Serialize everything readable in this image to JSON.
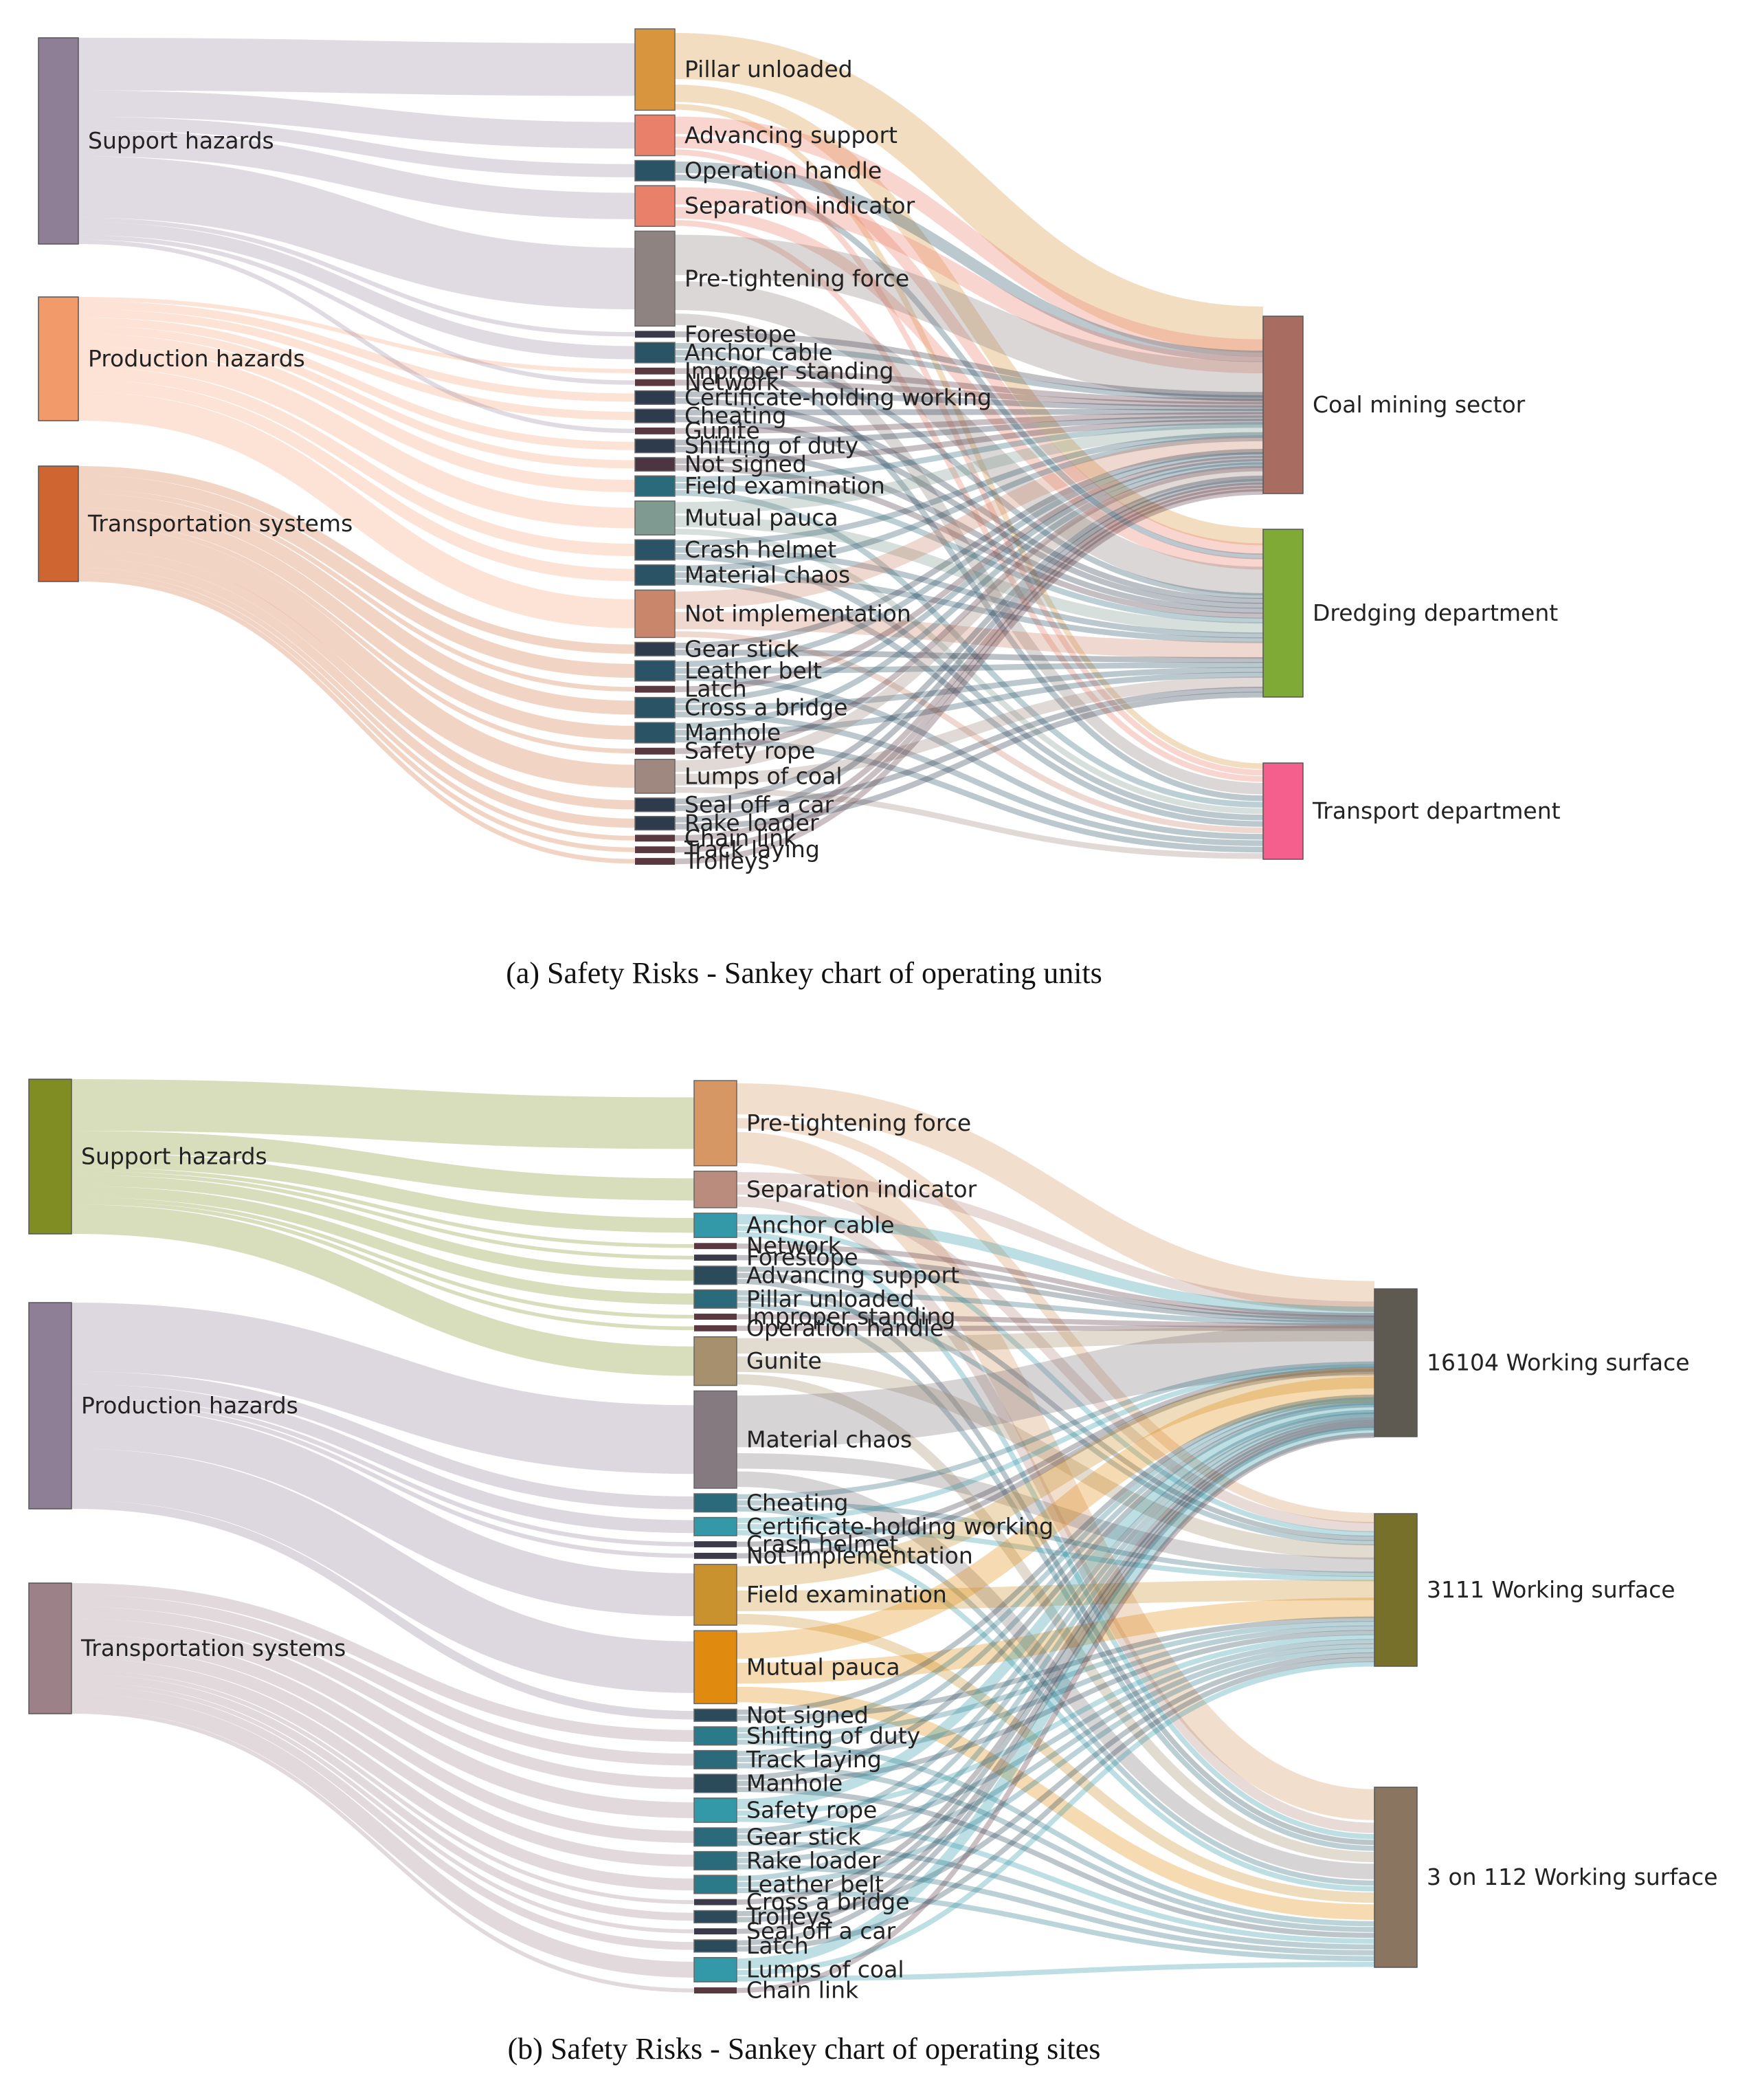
{
  "chart_data": [
    {
      "type": "sankey",
      "caption": "(a) Safety Risks - Sankey chart of operating units",
      "sources": [
        {
          "name": "Support hazards",
          "color": "#8e7f96"
        },
        {
          "name": "Production hazards",
          "color": "#f39a6a"
        },
        {
          "name": "Transportation systems",
          "color": "#cf6530"
        }
      ],
      "middle": [
        {
          "name": "Pillar unloaded",
          "value": 12,
          "source": 0,
          "color": "#d9953d",
          "targets": [
            8,
            3,
            1
          ]
        },
        {
          "name": "Advancing support",
          "value": 6,
          "source": 0,
          "color": "#e8806a",
          "targets": [
            3,
            2,
            1
          ]
        },
        {
          "name": "Operation handle",
          "value": 3,
          "source": 0,
          "color": "#2b5366",
          "targets": [
            2,
            1
          ]
        },
        {
          "name": "Separation indicator",
          "value": 6,
          "source": 0,
          "color": "#e8806a",
          "targets": [
            3,
            2,
            1
          ]
        },
        {
          "name": "Pre-tightening force",
          "value": 14,
          "source": 0,
          "color": "#8e8380",
          "targets": [
            7,
            5,
            2
          ]
        },
        {
          "name": "Forestope",
          "value": 1,
          "source": 0,
          "color": "#3a3a4a",
          "targets": [
            1
          ]
        },
        {
          "name": "Anchor cable",
          "value": 3,
          "source": 0,
          "color": "#2b5366",
          "targets": [
            1,
            1,
            1
          ]
        },
        {
          "name": "Improper standing",
          "value": 1,
          "source": 1,
          "color": "#5a3840",
          "targets": [
            1
          ]
        },
        {
          "name": "Network",
          "value": 1,
          "source": 0,
          "color": "#5a3840",
          "targets": [
            1
          ]
        },
        {
          "name": "Certificate-holding working",
          "value": 2,
          "source": 1,
          "color": "#2d3b4d",
          "targets": [
            1,
            1
          ]
        },
        {
          "name": "Cheating",
          "value": 2,
          "source": 1,
          "color": "#2d3b4d",
          "targets": [
            1,
            1
          ]
        },
        {
          "name": "Gunite",
          "value": 1,
          "source": 0,
          "color": "#5a3840",
          "targets": [
            1
          ]
        },
        {
          "name": "Shifting of duty",
          "value": 2,
          "source": 1,
          "color": "#2d3b4d",
          "targets": [
            1,
            1
          ]
        },
        {
          "name": "Not signed",
          "value": 2,
          "source": 1,
          "color": "#4a3540",
          "targets": [
            1,
            1
          ]
        },
        {
          "name": "Field examination",
          "value": 3,
          "source": 1,
          "color": "#2b6a7a",
          "targets": [
            1,
            1,
            1
          ]
        },
        {
          "name": "Mutual pauca",
          "value": 5,
          "source": 1,
          "color": "#7f9a90",
          "targets": [
            2,
            2,
            1
          ]
        },
        {
          "name": "Crash helmet",
          "value": 3,
          "source": 1,
          "color": "#2b5366",
          "targets": [
            1,
            1,
            1
          ]
        },
        {
          "name": "Material chaos",
          "value": 3,
          "source": 1,
          "color": "#2b5366",
          "targets": [
            1,
            1,
            1
          ]
        },
        {
          "name": "Not implementation",
          "value": 7,
          "source": 1,
          "color": "#c9866a",
          "targets": [
            3,
            3,
            1
          ]
        },
        {
          "name": "Gear stick",
          "value": 2,
          "source": 2,
          "color": "#2d3b4d",
          "targets": [
            1,
            1
          ]
        },
        {
          "name": "Leather belt",
          "value": 3,
          "source": 2,
          "color": "#2b5366",
          "targets": [
            1,
            1,
            1
          ]
        },
        {
          "name": "Latch",
          "value": 1,
          "source": 2,
          "color": "#5a3840",
          "targets": [
            1
          ]
        },
        {
          "name": "Cross a bridge",
          "value": 3,
          "source": 2,
          "color": "#2b5366",
          "targets": [
            1,
            1,
            1
          ]
        },
        {
          "name": "Manhole",
          "value": 3,
          "source": 2,
          "color": "#2b5366",
          "targets": [
            1,
            1,
            1
          ]
        },
        {
          "name": "Safety rope",
          "value": 1,
          "source": 2,
          "color": "#5a3840",
          "targets": [
            1
          ]
        },
        {
          "name": "Lumps of coal",
          "value": 5,
          "source": 2,
          "color": "#9e8880",
          "targets": [
            2,
            2,
            1
          ]
        },
        {
          "name": "Seal off a car",
          "value": 2,
          "source": 2,
          "color": "#2d3b4d",
          "targets": [
            1,
            1
          ]
        },
        {
          "name": "Rake loader",
          "value": 2,
          "source": 2,
          "color": "#2d3b4d",
          "targets": [
            1,
            1
          ]
        },
        {
          "name": "Chain link",
          "value": 1,
          "source": 2,
          "color": "#5a3840",
          "targets": [
            1
          ]
        },
        {
          "name": "Track laying",
          "value": 1,
          "source": 2,
          "color": "#5a3840",
          "targets": [
            1
          ]
        },
        {
          "name": "Trolleys",
          "value": 1,
          "source": 2,
          "color": "#5a3840",
          "targets": [
            1
          ]
        }
      ],
      "targets": [
        {
          "name": "Coal mining sector",
          "color": "#a86d60"
        },
        {
          "name": "Dredging department",
          "color": "#7eaa35"
        },
        {
          "name": "Transport department",
          "color": "#f45f8d"
        }
      ]
    },
    {
      "type": "sankey",
      "caption": "(b) Safety Risks - Sankey chart of operating sites",
      "sources": [
        {
          "name": "Support hazards",
          "color": "#7f8d22"
        },
        {
          "name": "Production hazards",
          "color": "#8e7f96"
        },
        {
          "name": "Transportation systems",
          "color": "#9c8288"
        }
      ],
      "middle": [
        {
          "name": "Pre-tightening force",
          "value": 14,
          "source": 0,
          "color": "#d69765",
          "targets": [
            6,
            2,
            6
          ]
        },
        {
          "name": "Separation indicator",
          "value": 6,
          "source": 0,
          "color": "#b98c7e",
          "targets": [
            2,
            2,
            2
          ]
        },
        {
          "name": "Anchor cable",
          "value": 4,
          "source": 0,
          "color": "#3399a8",
          "targets": [
            2,
            1,
            1
          ]
        },
        {
          "name": "Network",
          "value": 1,
          "source": 0,
          "color": "#5a3840",
          "targets": [
            1
          ]
        },
        {
          "name": "Forestope",
          "value": 1,
          "source": 0,
          "color": "#3a3a4a",
          "targets": [
            1
          ]
        },
        {
          "name": "Advancing support",
          "value": 3,
          "source": 0,
          "color": "#2b4a5a",
          "targets": [
            1,
            1,
            1
          ]
        },
        {
          "name": "Pillar unloaded",
          "value": 3,
          "source": 0,
          "color": "#2b6a7a",
          "targets": [
            1,
            1,
            1
          ]
        },
        {
          "name": "Improper standing",
          "value": 1,
          "source": 0,
          "color": "#5a3840",
          "targets": [
            1
          ]
        },
        {
          "name": "Operation handle",
          "value": 1,
          "source": 0,
          "color": "#5a3840",
          "targets": [
            1
          ]
        },
        {
          "name": "Gunite",
          "value": 8,
          "source": 0,
          "color": "#a6906e",
          "targets": [
            3,
            3,
            2
          ]
        },
        {
          "name": "Material chaos",
          "value": 16,
          "source": 1,
          "color": "#847a80",
          "targets": [
            10,
            3,
            3
          ]
        },
        {
          "name": "Cheating",
          "value": 3,
          "source": 1,
          "color": "#2b6a7a",
          "targets": [
            1,
            1,
            1
          ]
        },
        {
          "name": "Certificate-holding working",
          "value": 3,
          "source": 1,
          "color": "#3399a8",
          "targets": [
            1,
            1,
            1
          ]
        },
        {
          "name": "Crash helmet",
          "value": 1,
          "source": 1,
          "color": "#3a3a4a",
          "targets": [
            1
          ]
        },
        {
          "name": "Not implementation",
          "value": 1,
          "source": 1,
          "color": "#3a3a4a",
          "targets": [
            1
          ]
        },
        {
          "name": "Field examination",
          "value": 10,
          "source": 1,
          "color": "#c9922e",
          "targets": [
            4,
            4,
            2
          ]
        },
        {
          "name": "Mutual pauca",
          "value": 12,
          "source": 1,
          "color": "#e08b10",
          "targets": [
            5,
            4,
            3
          ]
        },
        {
          "name": "Not signed",
          "value": 2,
          "source": 1,
          "color": "#2b4a5a",
          "targets": [
            1,
            1
          ]
        },
        {
          "name": "Shifting of duty",
          "value": 3,
          "source": 2,
          "color": "#2b7a8a",
          "targets": [
            1,
            1,
            1
          ]
        },
        {
          "name": "Track laying",
          "value": 3,
          "source": 2,
          "color": "#2b6a7a",
          "targets": [
            1,
            1,
            1
          ]
        },
        {
          "name": "Manhole",
          "value": 3,
          "source": 2,
          "color": "#2b4a5a",
          "targets": [
            1,
            1,
            1
          ]
        },
        {
          "name": "Safety rope",
          "value": 4,
          "source": 2,
          "color": "#3399a8",
          "targets": [
            2,
            1,
            1
          ]
        },
        {
          "name": "Gear stick",
          "value": 3,
          "source": 2,
          "color": "#2b6a7a",
          "targets": [
            1,
            1,
            1
          ]
        },
        {
          "name": "Rake loader",
          "value": 3,
          "source": 2,
          "color": "#2b6a7a",
          "targets": [
            1,
            1,
            1
          ]
        },
        {
          "name": "Leather belt",
          "value": 3,
          "source": 2,
          "color": "#2b7a8a",
          "targets": [
            1,
            1,
            1
          ]
        },
        {
          "name": "Cross a bridge",
          "value": 1,
          "source": 2,
          "color": "#3a3a4a",
          "targets": [
            1
          ]
        },
        {
          "name": "Trolleys",
          "value": 2,
          "source": 2,
          "color": "#2b4a5a",
          "targets": [
            1,
            1
          ]
        },
        {
          "name": "Seal off a car",
          "value": 1,
          "source": 2,
          "color": "#3a3a4a",
          "targets": [
            1
          ]
        },
        {
          "name": "Latch",
          "value": 2,
          "source": 2,
          "color": "#2b4a5a",
          "targets": [
            1,
            1
          ]
        },
        {
          "name": "Lumps of coal",
          "value": 4,
          "source": 2,
          "color": "#3399a8",
          "targets": [
            2,
            1,
            1
          ]
        },
        {
          "name": "Chain link",
          "value": 1,
          "source": 2,
          "color": "#5a3840",
          "targets": [
            1
          ]
        }
      ],
      "targets": [
        {
          "name": "16104 Working surface",
          "color": "#5e5a52"
        },
        {
          "name": "3111 Working surface",
          "color": "#76702a"
        },
        {
          "name": "3 on 112 Working surface",
          "color": "#8a7560"
        }
      ]
    }
  ]
}
